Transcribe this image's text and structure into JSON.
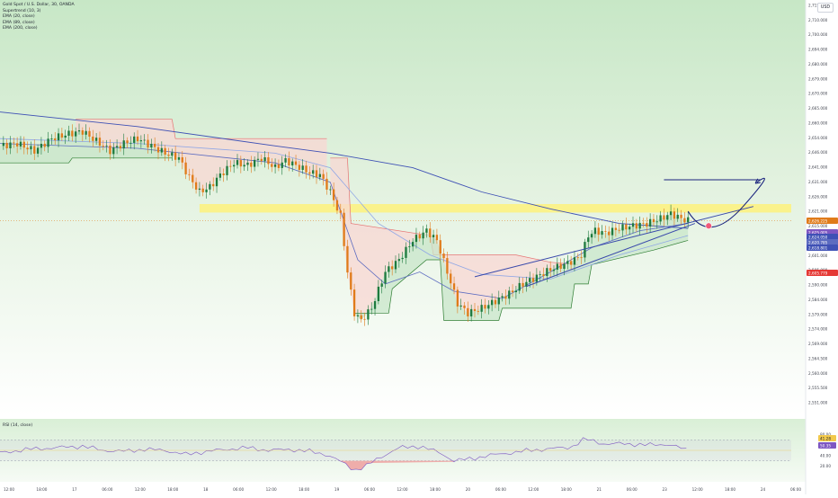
{
  "header": {
    "symbol_title": "Gold Spot / U.S. Dollar, 30, OANDA",
    "currency_label": "USD"
  },
  "indicators": [
    "Supertrend (10, 3)",
    "EMA (20, close)",
    "EMA (89, close)",
    "EMA (200, close)"
  ],
  "rsi_indicator": {
    "label": "RSI (14, close)",
    "axis_ticks": [
      "80.00",
      "40.00",
      "20.00"
    ],
    "value_badges": [
      {
        "text": "41.28",
        "color": "#f2c94c"
      },
      {
        "text": "50.35",
        "color": "#7e57c2"
      }
    ]
  },
  "colors": {
    "bull": "#1e7a3e",
    "bear": "#e07b1a",
    "ema_20": "#5c6bc0",
    "ema_89": "#8fa6e6",
    "ema_200": "#3f51b5",
    "supertrend_up_fill": "#c8e6c9",
    "supertrend_down_fill": "#f8d7d3",
    "support_zone": "#fff176",
    "projection_arrow": "#1a237e",
    "marker": "#ef5a7a",
    "rsi_line": "#7e57c2"
  },
  "chart_data": [
    {
      "type": "candlestick",
      "xlabel": "",
      "ylabel": "",
      "x_tick_labels": [
        "12:00",
        "18:00",
        "17",
        "06:00",
        "12:00",
        "18:00",
        "18",
        "06:00",
        "12:00",
        "18:00",
        "19",
        "06:00",
        "12:00",
        "18:00",
        "20",
        "06:00",
        "12:00",
        "18:00",
        "21",
        "06:00",
        "23",
        "12:00",
        "18:00",
        "24",
        "06:00"
      ],
      "y_tick_labels": [
        "2,715.000",
        "2,710.000",
        "2,700.000",
        "2,694.000",
        "2,680.000",
        "2,679.000",
        "2,670.000",
        "2,665.000",
        "2,660.000",
        "2,654.000",
        "2,646.000",
        "2,641.000",
        "2,631.000",
        "2,626.000",
        "2,621.000",
        "2,615.000",
        "2,607.000",
        "2,601.000",
        "2,595.000",
        "2,590.000",
        "2,584.000",
        "2,579.000",
        "2,574.000",
        "2,569.000",
        "2,564.500",
        "2,560.000",
        "2,555.500",
        "2,551.000"
      ],
      "ylim": [
        2551,
        2715
      ],
      "price_badges": [
        {
          "text": "2,626.225",
          "color": "#e07b1a"
        },
        {
          "text": "2,625.005",
          "color": "#7e57c2"
        },
        {
          "text": "2,624.050",
          "color": "#3f51b5"
        },
        {
          "text": "2,620.785",
          "color": "#5c6bc0"
        },
        {
          "text": "2,618.801",
          "color": "#3f51b5"
        },
        {
          "text": "2,605.779",
          "color": "#e53935"
        }
      ],
      "levels": {
        "support_zone": [
          2629.5,
          2633
        ],
        "target_line": 2643,
        "current_price": 2626.2
      },
      "close_path": [
        [
          0,
          2657
        ],
        [
          5,
          2658
        ],
        [
          10,
          2655
        ],
        [
          15,
          2660
        ],
        [
          20,
          2662
        ],
        [
          24,
          2663
        ],
        [
          28,
          2659
        ],
        [
          32,
          2655
        ],
        [
          36,
          2658
        ],
        [
          40,
          2660
        ],
        [
          44,
          2657
        ],
        [
          48,
          2654
        ],
        [
          52,
          2652
        ],
        [
          55,
          2644
        ],
        [
          58,
          2638
        ],
        [
          61,
          2640
        ],
        [
          64,
          2645
        ],
        [
          68,
          2650
        ],
        [
          72,
          2649
        ],
        [
          76,
          2652
        ],
        [
          80,
          2648
        ],
        [
          83,
          2651
        ],
        [
          86,
          2649
        ],
        [
          90,
          2646
        ],
        [
          93,
          2645
        ],
        [
          96,
          2638
        ],
        [
          99,
          2628
        ],
        [
          101,
          2605
        ],
        [
          103,
          2588
        ],
        [
          105,
          2585
        ],
        [
          108,
          2590
        ],
        [
          112,
          2605
        ],
        [
          116,
          2610
        ],
        [
          120,
          2618
        ],
        [
          124,
          2622
        ],
        [
          127,
          2618
        ],
        [
          130,
          2605
        ],
        [
          133,
          2592
        ],
        [
          136,
          2588
        ],
        [
          140,
          2590
        ],
        [
          144,
          2593
        ],
        [
          148,
          2596
        ],
        [
          152,
          2600
        ],
        [
          156,
          2603
        ],
        [
          160,
          2606
        ],
        [
          164,
          2608
        ],
        [
          167,
          2610
        ],
        [
          169,
          2612
        ],
        [
          171,
          2620
        ],
        [
          173,
          2622
        ],
        [
          176,
          2621
        ],
        [
          180,
          2623
        ],
        [
          184,
          2624
        ],
        [
          188,
          2625
        ],
        [
          192,
          2627
        ],
        [
          195,
          2629
        ],
        [
          198,
          2627
        ],
        [
          200,
          2626.2
        ]
      ],
      "ema_200": [
        [
          0,
          2671
        ],
        [
          40,
          2665
        ],
        [
          80,
          2657
        ],
        [
          96,
          2654
        ],
        [
          120,
          2648
        ],
        [
          140,
          2638
        ],
        [
          160,
          2631
        ],
        [
          180,
          2625
        ],
        [
          200,
          2623
        ]
      ],
      "ema_89": [
        [
          0,
          2660
        ],
        [
          40,
          2658
        ],
        [
          80,
          2654
        ],
        [
          96,
          2648
        ],
        [
          110,
          2625
        ],
        [
          125,
          2612
        ],
        [
          140,
          2604
        ],
        [
          160,
          2602
        ],
        [
          180,
          2612
        ],
        [
          200,
          2620
        ]
      ],
      "ema_20": [
        [
          0,
          2658
        ],
        [
          40,
          2656
        ],
        [
          80,
          2650
        ],
        [
          96,
          2642
        ],
        [
          104,
          2610
        ],
        [
          112,
          2600
        ],
        [
          122,
          2605
        ],
        [
          132,
          2597
        ],
        [
          146,
          2594
        ],
        [
          160,
          2605
        ],
        [
          172,
          2615
        ],
        [
          186,
          2622
        ],
        [
          200,
          2625
        ]
      ],
      "supertrend": [
        {
          "dir": "up",
          "pts": [
            [
              0,
              2650
            ],
            [
              20,
              2650
            ],
            [
              21,
              2652
            ],
            [
              50,
              2652
            ]
          ]
        },
        {
          "dir": "down",
          "pts": [
            [
              22,
              2668
            ],
            [
              50,
              2668
            ],
            [
              51,
              2660
            ],
            [
              95,
              2660
            ]
          ]
        },
        {
          "dir": "down",
          "pts": [
            [
              96,
              2652
            ],
            [
              101,
              2652
            ],
            [
              102,
              2625
            ],
            [
              125,
              2620
            ],
            [
              126,
              2612
            ],
            [
              150,
              2612
            ],
            [
              160,
              2609
            ],
            [
              168,
              2608
            ]
          ]
        },
        {
          "dir": "up",
          "pts": [
            [
              103,
              2588
            ],
            [
              113,
              2588
            ],
            [
              114,
              2598
            ],
            [
              124,
              2610
            ],
            [
              128,
              2610
            ],
            [
              129,
              2585
            ],
            [
              145,
              2585
            ],
            [
              146,
              2590
            ],
            [
              166,
              2590
            ],
            [
              167,
              2600
            ],
            [
              171,
              2600
            ],
            [
              172,
              2608
            ],
            [
              190,
              2614
            ],
            [
              200,
              2618
            ]
          ]
        }
      ],
      "trendlines": [
        {
          "x1": 138,
          "y1": 2603,
          "x2": 219,
          "y2": 2632
        },
        {
          "x1": 153,
          "y1": 2599,
          "x2": 202,
          "y2": 2625
        }
      ],
      "projection": {
        "path": [
          [
            200,
            2630
          ],
          [
            206,
            2622
          ],
          [
            216,
            2632
          ],
          [
            220,
            2642
          ]
        ],
        "marker": [
          206,
          2624
        ]
      }
    },
    {
      "type": "line",
      "name": "RSI",
      "ylim": [
        0,
        100
      ],
      "bands": [
        30,
        70
      ],
      "points": [
        [
          0,
          45
        ],
        [
          8,
          52
        ],
        [
          16,
          55
        ],
        [
          24,
          58
        ],
        [
          30,
          50
        ],
        [
          36,
          48
        ],
        [
          42,
          52
        ],
        [
          48,
          50
        ],
        [
          54,
          42
        ],
        [
          60,
          48
        ],
        [
          66,
          52
        ],
        [
          72,
          55
        ],
        [
          78,
          50
        ],
        [
          84,
          52
        ],
        [
          90,
          48
        ],
        [
          95,
          42
        ],
        [
          100,
          25
        ],
        [
          103,
          12
        ],
        [
          106,
          18
        ],
        [
          110,
          35
        ],
        [
          116,
          55
        ],
        [
          122,
          58
        ],
        [
          128,
          45
        ],
        [
          132,
          30
        ],
        [
          136,
          33
        ],
        [
          142,
          40
        ],
        [
          148,
          45
        ],
        [
          154,
          50
        ],
        [
          160,
          53
        ],
        [
          166,
          56
        ],
        [
          170,
          72
        ],
        [
          176,
          62
        ],
        [
          182,
          63
        ],
        [
          188,
          60
        ],
        [
          194,
          62
        ],
        [
          200,
          50
        ]
      ]
    }
  ]
}
